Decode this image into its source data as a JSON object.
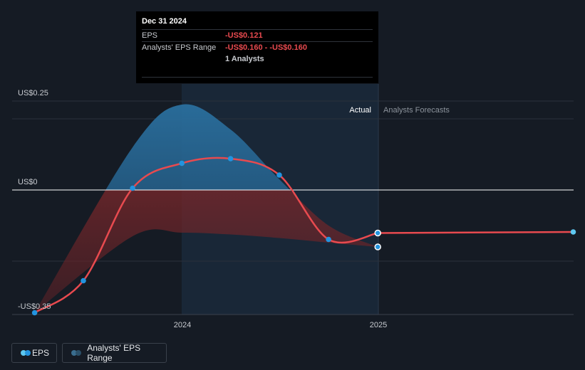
{
  "chart_data": {
    "type": "line",
    "y_top_label": "US$0.25",
    "y_zero_label": "US$0",
    "y_bottom_label": "-US$0.35",
    "x_tick_labels": [
      "2024",
      "2025"
    ],
    "ylim": [
      -0.35,
      0.25
    ],
    "divider_label_actual": "Actual",
    "divider_label_forecast": "Analysts Forecasts",
    "series": [
      {
        "name": "EPS",
        "color": "#e84a4f",
        "points": [
          {
            "x": "2023-03-31",
            "y": -0.345
          },
          {
            "x": "2023-06-30",
            "y": -0.255
          },
          {
            "x": "2023-09-30",
            "y": 0.005
          },
          {
            "x": "2023-12-31",
            "y": 0.075
          },
          {
            "x": "2024-03-31",
            "y": 0.088
          },
          {
            "x": "2024-06-30",
            "y": 0.042
          },
          {
            "x": "2024-09-30",
            "y": -0.139
          },
          {
            "x": "2024-12-31",
            "y": -0.121
          },
          {
            "x": "2025-12-31",
            "y": -0.118
          }
        ]
      },
      {
        "name": "Analysts' EPS Range",
        "color": "#2a6f9e",
        "upper": [
          {
            "x": "2023-03-31",
            "y": -0.345
          },
          {
            "x": "2023-09-30",
            "y": 0.12
          },
          {
            "x": "2023-12-31",
            "y": 0.24
          },
          {
            "x": "2024-03-31",
            "y": 0.17
          },
          {
            "x": "2024-06-30",
            "y": 0.03
          },
          {
            "x": "2024-09-30",
            "y": -0.1
          },
          {
            "x": "2024-12-31",
            "y": -0.16
          }
        ],
        "lower": [
          {
            "x": "2023-03-31",
            "y": -0.345
          },
          {
            "x": "2023-09-30",
            "y": -0.13
          },
          {
            "x": "2023-12-31",
            "y": -0.12
          },
          {
            "x": "2024-03-31",
            "y": -0.125
          },
          {
            "x": "2024-06-30",
            "y": -0.135
          },
          {
            "x": "2024-09-30",
            "y": -0.148
          },
          {
            "x": "2024-12-31",
            "y": -0.16
          }
        ]
      }
    ]
  },
  "tooltip": {
    "date": "Dec 31 2024",
    "rows": [
      {
        "label": "EPS",
        "value": "-US$0.121"
      },
      {
        "label": "Analysts' EPS Range",
        "value": "-US$0.160 - -US$0.160"
      },
      {
        "label": "",
        "value": "1 Analysts"
      }
    ]
  },
  "legend": {
    "eps_label": "EPS",
    "range_label": "Analysts' EPS Range"
  },
  "colors": {
    "eps_line": "#e84a4f",
    "eps_dot": "#2394df",
    "range_fill": "#2a6f9e",
    "forecast_region": "#1b2c3d"
  }
}
